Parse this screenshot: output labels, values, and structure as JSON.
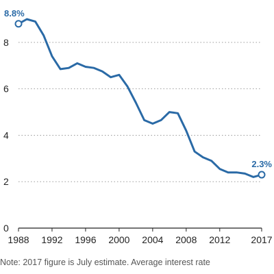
{
  "chart_data": {
    "type": "line",
    "x": [
      1988,
      1989,
      1990,
      1991,
      1992,
      1993,
      1994,
      1995,
      1996,
      1997,
      1998,
      1999,
      2000,
      2001,
      2002,
      2003,
      2004,
      2005,
      2006,
      2007,
      2008,
      2009,
      2010,
      2011,
      2012,
      2013,
      2014,
      2015,
      2016,
      2017
    ],
    "series": [
      {
        "values": [
          8.8,
          9.0,
          8.9,
          8.3,
          7.4,
          6.85,
          6.9,
          7.1,
          6.95,
          6.9,
          6.75,
          6.5,
          6.6,
          6.1,
          5.4,
          4.65,
          4.5,
          4.65,
          5.0,
          4.95,
          4.2,
          3.3,
          3.05,
          2.9,
          2.55,
          2.4,
          2.4,
          2.35,
          2.2,
          2.3
        ]
      }
    ],
    "xticks": [
      "1988",
      "1992",
      "1996",
      "2000",
      "2004",
      "2008",
      "2012",
      "2017"
    ],
    "xtick_values": [
      1988,
      1992,
      1996,
      2000,
      2004,
      2008,
      2012,
      2017
    ],
    "yticks": [
      "0",
      "2",
      "4",
      "6",
      "8"
    ],
    "ytick_values": [
      0,
      2,
      4,
      6,
      8
    ],
    "xlim": [
      1988,
      2017
    ],
    "ylim": [
      0,
      9
    ],
    "grid": "horizontal dotted",
    "annotations": [
      {
        "text": "8.8%",
        "x": 1988,
        "y": 8.8,
        "anchor": "start"
      },
      {
        "text": "2.3%",
        "x": 2017,
        "y": 2.3,
        "anchor": "end"
      }
    ],
    "line_color": "#2a6aa6",
    "label_color": "#2a6aa6"
  },
  "note": "Note: 2017 figure is July estimate. Average interest rate"
}
